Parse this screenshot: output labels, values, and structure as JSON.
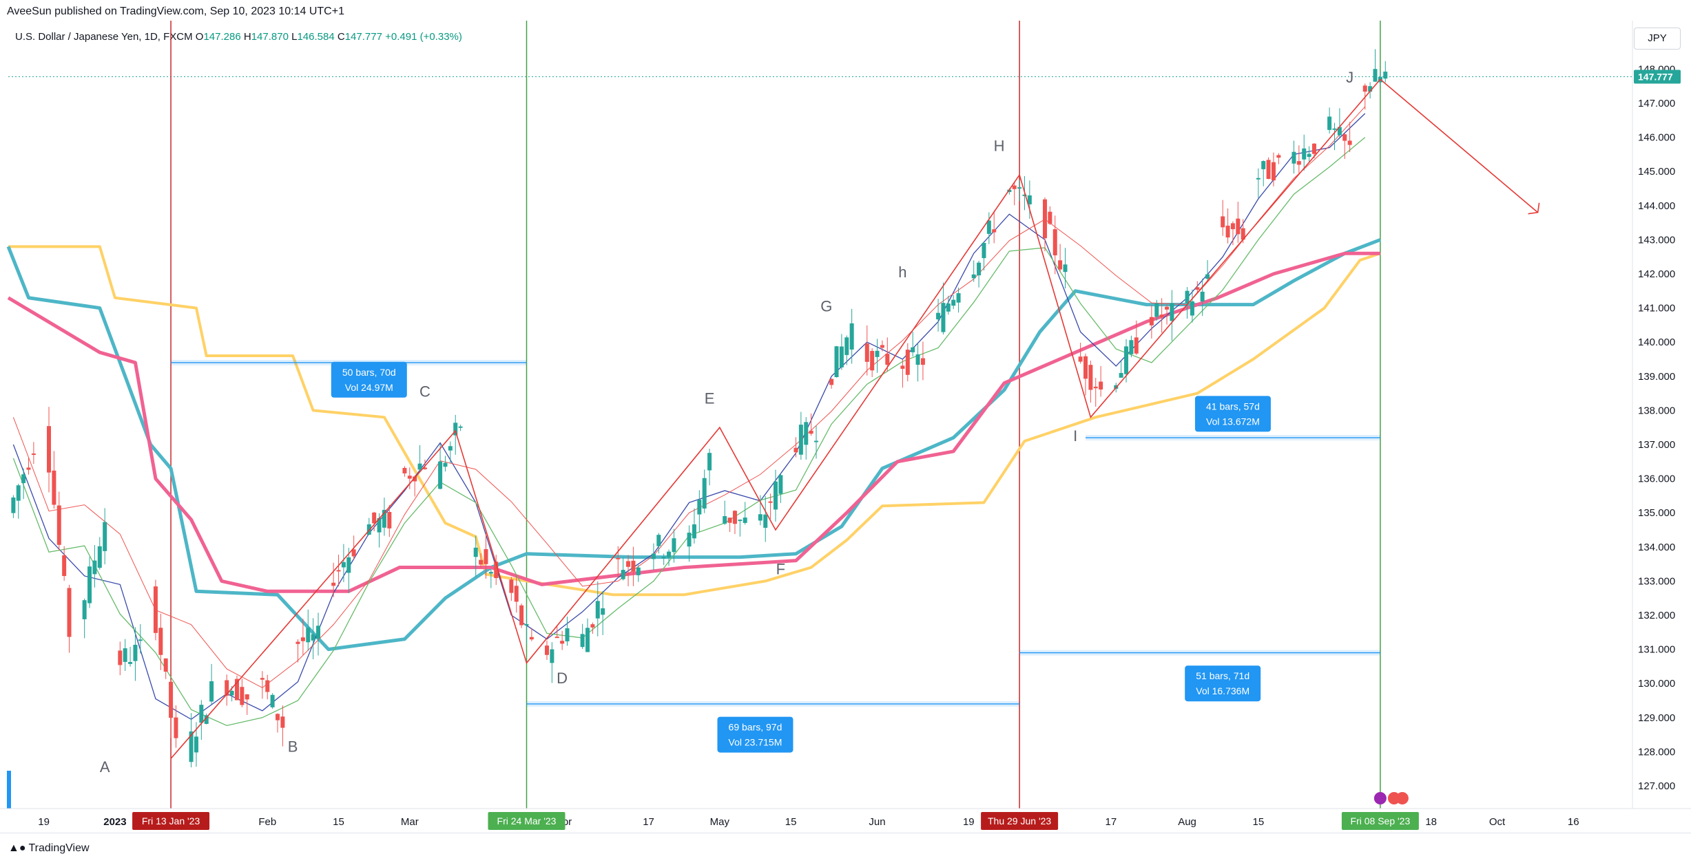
{
  "header": {
    "publisher_text": "AveeSun published on TradingView.com, Sep 10, 2023 10:14 UTC+1",
    "symbol": "U.S. Dollar / Japanese Yen, 1D, FXCM",
    "ohlc": {
      "o_label": "O",
      "o": "147.286",
      "h_label": "H",
      "h": "147.870",
      "l_label": "L",
      "l": "146.584",
      "c_label": "C",
      "c": "147.777",
      "change": "+0.491 (+0.33%)"
    }
  },
  "price_axis": {
    "currency": "JPY",
    "last_price": "147.777",
    "ticks": [
      "148.000",
      "147.000",
      "146.000",
      "145.000",
      "144.000",
      "143.000",
      "142.000",
      "141.000",
      "140.000",
      "139.000",
      "138.000",
      "137.000",
      "136.000",
      "135.000",
      "134.000",
      "133.000",
      "132.000",
      "131.000",
      "130.000",
      "129.000",
      "128.000",
      "127.000"
    ]
  },
  "time_axis": {
    "labels": [
      "19",
      "2023",
      "Feb",
      "15",
      "Mar",
      "pr",
      "17",
      "May",
      "15",
      "Jun",
      "19",
      "17",
      "Aug",
      "15",
      "S",
      "18",
      "Oct",
      "16"
    ],
    "highlights": [
      {
        "text": "Fri 13 Jan '23",
        "color": "#b71c1c"
      },
      {
        "text": "Fri 24 Mar '23",
        "color": "#4caf50"
      },
      {
        "text": "Thu 29 Jun '23",
        "color": "#b71c1c"
      },
      {
        "text": "Fri 08 Sep '23",
        "color": "#4caf50"
      }
    ]
  },
  "wave_labels": [
    "A",
    "B",
    "C",
    "D",
    "E",
    "F",
    "G",
    "h",
    "H",
    "I",
    "J"
  ],
  "measure_boxes": [
    {
      "line1": "50 bars, 70d",
      "line2": "Vol 24.97M"
    },
    {
      "line1": "69 bars, 97d",
      "line2": "Vol 23.715M"
    },
    {
      "line1": "41 bars, 57d",
      "line2": "Vol 13.672M"
    },
    {
      "line1": "51 bars, 71d",
      "line2": "Vol 16.736M"
    }
  ],
  "colors": {
    "up": "#26a69a",
    "down": "#ef5350",
    "yellow": "#ffd166",
    "teal": "#4db6c7",
    "pink": "#f06292",
    "blue": "#3949ab",
    "green": "#66bb6a",
    "red_line": "#e53935",
    "accent_green": "#4caf50",
    "accent_red": "#b71c1c",
    "measure": "#2196f3"
  },
  "footer": {
    "brand": "TradingView"
  },
  "chart_data": {
    "type": "candlestick",
    "title": "U.S. Dollar / Japanese Yen, 1D, FXCM",
    "ylim": [
      126.0,
      148.4
    ],
    "x_start": "2022-12-12",
    "x_end": "2023-10-26",
    "ohlc_ranges": [
      [
        "2022-12-13",
        135.0,
        137.0
      ],
      [
        "2022-12-20",
        137.8,
        131.5
      ],
      [
        "2022-12-27",
        132.0,
        134.8
      ],
      [
        "2023-01-03",
        130.6,
        131.0
      ],
      [
        "2023-01-10",
        132.8,
        128.1
      ],
      [
        "2023-01-17",
        128.0,
        129.8
      ],
      [
        "2023-01-24",
        130.1,
        129.6
      ],
      [
        "2023-01-31",
        130.2,
        128.8
      ],
      [
        "2023-02-07",
        131.2,
        131.3
      ],
      [
        "2023-02-14",
        133.0,
        134.0
      ],
      [
        "2023-02-21",
        134.6,
        134.8
      ],
      [
        "2023-02-28",
        136.0,
        136.5
      ],
      [
        "2023-03-07",
        136.0,
        137.6
      ],
      [
        "2023-03-14",
        134.0,
        133.0
      ],
      [
        "2023-03-21",
        133.0,
        131.0
      ],
      [
        "2023-03-28",
        130.8,
        131.6
      ],
      [
        "2023-04-04",
        131.0,
        132.6
      ],
      [
        "2023-04-11",
        133.4,
        133.6
      ],
      [
        "2023-04-18",
        134.0,
        134.0
      ],
      [
        "2023-04-25",
        133.7,
        136.6
      ],
      [
        "2023-05-02",
        135.0,
        134.7
      ],
      [
        "2023-05-09",
        134.4,
        136.0
      ],
      [
        "2023-05-16",
        137.0,
        137.5
      ],
      [
        "2023-05-23",
        138.8,
        140.5
      ],
      [
        "2023-05-30",
        139.6,
        139.5
      ],
      [
        "2023-06-06",
        139.4,
        139.5
      ],
      [
        "2023-06-13",
        140.4,
        141.7
      ],
      [
        "2023-06-20",
        142.0,
        143.5
      ],
      [
        "2023-06-27",
        144.6,
        144.0
      ],
      [
        "2023-07-04",
        143.8,
        142.0
      ],
      [
        "2023-07-11",
        139.6,
        138.6
      ],
      [
        "2023-07-18",
        138.8,
        140.0
      ],
      [
        "2023-07-25",
        140.8,
        140.8
      ],
      [
        "2023-08-01",
        141.0,
        141.8
      ],
      [
        "2023-08-08",
        143.4,
        143.2
      ],
      [
        "2023-08-15",
        144.8,
        145.2
      ],
      [
        "2023-08-22",
        145.4,
        145.8
      ],
      [
        "2023-08-29",
        146.4,
        145.6
      ],
      [
        "2023-09-05",
        147.5,
        147.8
      ]
    ],
    "indicator_lines": [
      {
        "color": "yellow",
        "values": [
          [
            "2022-12-12",
            142.8
          ],
          [
            "2022-12-30",
            142.8
          ],
          [
            "2023-01-02",
            141.3
          ],
          [
            "2023-01-18",
            141.0
          ],
          [
            "2023-01-20",
            139.6
          ],
          [
            "2023-02-06",
            139.6
          ],
          [
            "2023-02-10",
            138.0
          ],
          [
            "2023-02-24",
            137.8
          ],
          [
            "2023-03-01",
            136.5
          ],
          [
            "2023-03-08",
            134.7
          ],
          [
            "2023-03-14",
            134.3
          ],
          [
            "2023-03-16",
            133.2
          ],
          [
            "2023-03-24",
            133.0
          ],
          [
            "2023-04-10",
            132.6
          ],
          [
            "2023-04-24",
            132.6
          ],
          [
            "2023-05-10",
            133.0
          ],
          [
            "2023-05-19",
            133.4
          ],
          [
            "2023-05-26",
            134.2
          ],
          [
            "2023-06-02",
            135.2
          ],
          [
            "2023-06-22",
            135.3
          ],
          [
            "2023-06-30",
            137.1
          ],
          [
            "2023-07-14",
            137.8
          ],
          [
            "2023-08-03",
            138.5
          ],
          [
            "2023-08-14",
            139.5
          ],
          [
            "2023-08-28",
            141.0
          ],
          [
            "2023-09-04",
            142.4
          ],
          [
            "2023-09-08",
            142.6
          ]
        ]
      },
      {
        "color": "teal",
        "values": [
          [
            "2022-12-12",
            142.8
          ],
          [
            "2022-12-16",
            141.3
          ],
          [
            "2022-12-30",
            141.0
          ],
          [
            "2023-01-04",
            139.0
          ],
          [
            "2023-01-09",
            137.0
          ],
          [
            "2023-01-13",
            136.3
          ],
          [
            "2023-01-18",
            132.7
          ],
          [
            "2023-02-03",
            132.6
          ],
          [
            "2023-02-13",
            131.0
          ],
          [
            "2023-02-28",
            131.3
          ],
          [
            "2023-03-08",
            132.5
          ],
          [
            "2023-03-17",
            133.4
          ],
          [
            "2023-03-24",
            133.8
          ],
          [
            "2023-04-14",
            133.7
          ],
          [
            "2023-05-05",
            133.7
          ],
          [
            "2023-05-16",
            133.8
          ],
          [
            "2023-05-25",
            134.6
          ],
          [
            "2023-06-02",
            136.3
          ],
          [
            "2023-06-16",
            137.2
          ],
          [
            "2023-06-26",
            138.6
          ],
          [
            "2023-07-03",
            140.3
          ],
          [
            "2023-07-10",
            141.5
          ],
          [
            "2023-07-24",
            141.1
          ],
          [
            "2023-08-07",
            141.1
          ],
          [
            "2023-08-14",
            141.1
          ],
          [
            "2023-08-22",
            141.8
          ],
          [
            "2023-09-01",
            142.6
          ],
          [
            "2023-09-08",
            143.0
          ]
        ]
      },
      {
        "color": "pink",
        "values": [
          [
            "2022-12-12",
            141.3
          ],
          [
            "2022-12-30",
            139.7
          ],
          [
            "2023-01-06",
            139.4
          ],
          [
            "2023-01-10",
            136.0
          ],
          [
            "2023-01-17",
            134.8
          ],
          [
            "2023-01-23",
            133.0
          ],
          [
            "2023-02-01",
            132.7
          ],
          [
            "2023-02-17",
            132.7
          ],
          [
            "2023-02-27",
            133.4
          ],
          [
            "2023-03-17",
            133.4
          ],
          [
            "2023-03-27",
            132.9
          ],
          [
            "2023-04-24",
            133.4
          ],
          [
            "2023-05-16",
            133.6
          ],
          [
            "2023-05-26",
            135.0
          ],
          [
            "2023-06-05",
            136.5
          ],
          [
            "2023-06-16",
            136.8
          ],
          [
            "2023-06-26",
            138.8
          ],
          [
            "2023-07-10",
            139.7
          ],
          [
            "2023-07-24",
            140.6
          ],
          [
            "2023-08-07",
            141.3
          ],
          [
            "2023-08-18",
            142.0
          ],
          [
            "2023-09-01",
            142.6
          ],
          [
            "2023-09-08",
            142.6
          ]
        ]
      }
    ]
  }
}
